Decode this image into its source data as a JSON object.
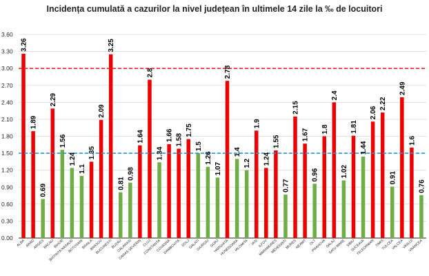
{
  "chart_data": {
    "type": "bar",
    "title": "Incidența cumulată a cazurilor la nivel județean în ultimele 14 zile la ‰ de locuitori",
    "xlabel": "",
    "ylabel": "",
    "ylim": [
      0,
      3.6
    ],
    "yticks": [
      "0.00",
      "0.30",
      "0.60",
      "0.90",
      "1.20",
      "1.50",
      "1.80",
      "2.10",
      "2.40",
      "2.70",
      "3.00",
      "3.30",
      "3.60"
    ],
    "grid": true,
    "categories": [
      "ALBA",
      "ARAD",
      "ARGES",
      "BACAU",
      "BIHOR",
      "BISTRITA NASAUD",
      "BOTOSANI",
      "BRAILA",
      "BRASOV",
      "BUCURESTI",
      "BUZAU",
      "CALARASI",
      "CARAS-SEVERIN",
      "CLUJ",
      "CONSTANTA",
      "COVASNA",
      "DAMBOVITA",
      "DOLJ",
      "GALATI",
      "GIURGIU",
      "GORJ",
      "HARGHITA",
      "HUNEDOARA",
      "IALOMITA",
      "IASI",
      "ILFOV",
      "MARAMURES",
      "MEHEDINTI",
      "MURES",
      "NEAMT",
      "OLT",
      "PRAHOVA",
      "SALAJ",
      "SATU MARE",
      "SIBIU",
      "SUCEAVA",
      "TELEORMAN",
      "TIMIS",
      "TULCEA",
      "VALCEA",
      "VASLUI",
      "VRANCEA"
    ],
    "values": [
      3.26,
      1.89,
      0.69,
      2.29,
      1.56,
      1.24,
      1.1,
      1.35,
      2.09,
      3.25,
      0.81,
      0.98,
      1.64,
      2.8,
      1.34,
      1.66,
      1.58,
      1.75,
      1.5,
      1.26,
      1.07,
      2.78,
      1.4,
      1.2,
      1.9,
      1.24,
      1.55,
      0.77,
      2.15,
      1.67,
      0.96,
      1.8,
      2.4,
      1.02,
      1.81,
      1.44,
      2.06,
      2.22,
      0.91,
      2.49,
      1.6,
      0.76
    ],
    "value_labels": [
      "3.26",
      "1.89",
      "0.69",
      "2.29",
      "1.56",
      "1.24",
      "1.1",
      "1.35",
      "2.09",
      "3.25",
      "0.81",
      "0.98",
      "1.64",
      "2.8",
      "1.34",
      "1.66",
      "1.58",
      "1.75",
      "1.5",
      "1.26",
      "1.07",
      "2.78",
      "1.4",
      "1.2",
      "1.9",
      "1.24",
      "1.55",
      "0.77",
      "2.15",
      "1.67",
      "0.96",
      "1.8",
      "2.4",
      "1.02",
      "1.81",
      "1.44",
      "2.06",
      "2.22",
      "0.91",
      "2.49",
      "1.6",
      "0.76"
    ],
    "bar_colors": [
      "red",
      "red",
      "green",
      "red",
      "green",
      "green",
      "green",
      "red",
      "red",
      "red",
      "green",
      "green",
      "red",
      "red",
      "green",
      "red",
      "red",
      "red",
      "green",
      "green",
      "green",
      "red",
      "green",
      "green",
      "red",
      "red",
      "red",
      "green",
      "red",
      "red",
      "green",
      "red",
      "red",
      "green",
      "red",
      "green",
      "red",
      "red",
      "green",
      "red",
      "red",
      "green"
    ],
    "threshold_lines": [
      {
        "value": 3.0,
        "color": "#ee2222",
        "style": "dashed"
      },
      {
        "value": 1.5,
        "color": "#2299cc",
        "style": "dashed"
      }
    ],
    "colors": {
      "red": "#ee0000",
      "green": "#70ad47",
      "grid": "#d9d9d9",
      "axis": "#222222"
    }
  }
}
